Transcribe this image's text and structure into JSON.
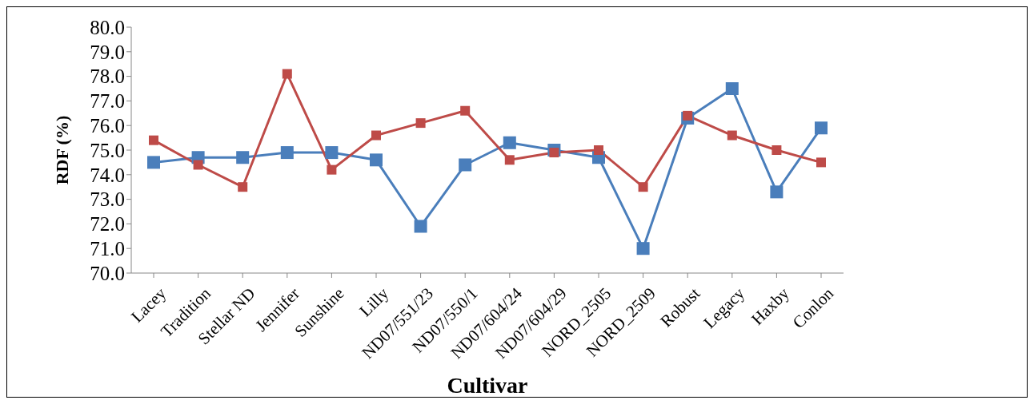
{
  "chart_data": {
    "type": "line",
    "xlabel": "Cultivar",
    "ylabel": "RDF (%)",
    "categories": [
      "Lacey",
      "Tradition",
      "Stellar ND",
      "Jennifer",
      "Sunshine",
      "Lilly",
      "ND07/551/23",
      "ND07/550/1",
      "ND07/604/24",
      "ND07/604/29",
      "NORD_2505",
      "NORD_2509",
      "Robust",
      "Legacy",
      "Haxby",
      "Conlon"
    ],
    "series": [
      {
        "color": "#4a7ebb",
        "values": [
          74.5,
          74.7,
          74.7,
          74.9,
          74.9,
          74.6,
          71.9,
          74.4,
          75.3,
          75.0,
          74.7,
          71.0,
          76.3,
          77.5,
          73.3,
          75.9
        ]
      },
      {
        "color": "#be4b48",
        "values": [
          75.4,
          74.4,
          73.5,
          78.1,
          74.2,
          75.6,
          76.1,
          76.6,
          74.6,
          74.9,
          75.0,
          73.5,
          76.4,
          75.6,
          75.0,
          74.5
        ]
      }
    ],
    "ylim": [
      70,
      80
    ],
    "yticks": [
      {
        "value": 70,
        "label": "70.0"
      },
      {
        "value": 71,
        "label": "71.0"
      },
      {
        "value": 72,
        "label": "72.0"
      },
      {
        "value": 73,
        "label": "73.0"
      },
      {
        "value": 74,
        "label": "74.0"
      },
      {
        "value": 75,
        "label": "75.0"
      },
      {
        "value": 76,
        "label": "76.0"
      },
      {
        "value": 77,
        "label": "77.0"
      },
      {
        "value": 78,
        "label": "78.0"
      },
      {
        "value": 79,
        "label": "79.0"
      },
      {
        "value": 80,
        "label": "80.0"
      }
    ],
    "grid": false,
    "legend": false,
    "marker": "square",
    "line_style": "solid"
  }
}
